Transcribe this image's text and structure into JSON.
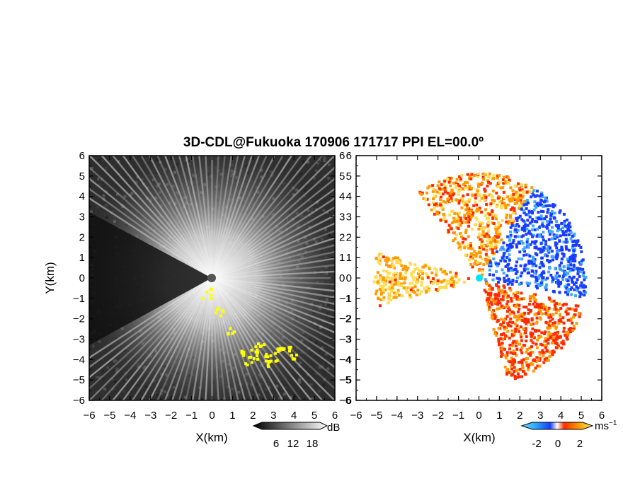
{
  "title": "3D-CDL@Fukuoka 170906 171717 PPI EL=00.0º",
  "colors": {
    "reflectivity_low": "#000000",
    "reflectivity_high": "#ffffff",
    "highlight": "#ffff00",
    "velocity_negative_dark": "#1a3cff",
    "velocity_negative_light": "#3fa8ff",
    "velocity_near_zero": "#ffffff",
    "velocity_positive_mid": "#ff9a00",
    "velocity_positive_high": "#ff2a00",
    "velocity_positive_light": "#ffdd55",
    "radar_marker_left": "#555555",
    "radar_marker_right": "#00e5ff"
  },
  "chart_data": [
    {
      "type": "heatmap",
      "panel": "left",
      "quantity": "signal intensity (grayscale PPI)",
      "xlabel": "X(km)",
      "ylabel": "Y(km)",
      "xlim": [
        -6,
        6
      ],
      "ylim": [
        -6,
        6
      ],
      "x_ticks": [
        -6,
        -5,
        -4,
        -3,
        -2,
        -1,
        0,
        1,
        2,
        3,
        4,
        5,
        6
      ],
      "y_ticks": [
        -6,
        -5,
        -4,
        -3,
        -2,
        -1,
        0,
        1,
        2,
        3,
        4,
        5,
        6
      ],
      "colorbar": {
        "unit": "dB",
        "ticks": [
          6,
          12,
          18
        ]
      },
      "radar_position": [
        0,
        0
      ],
      "blocked_sectors_deg": [
        [
          150,
          210
        ]
      ],
      "yellow_contour_points": [
        [
          -0.3,
          -0.7
        ],
        [
          0.3,
          -1.6
        ],
        [
          0.8,
          -2.6
        ],
        [
          1.3,
          -3.5
        ],
        [
          1.7,
          -4.0
        ],
        [
          2.0,
          -3.7
        ],
        [
          2.3,
          -3.4
        ],
        [
          2.6,
          -3.9
        ],
        [
          2.9,
          -4.1
        ],
        [
          3.2,
          -3.6
        ],
        [
          3.6,
          -3.5
        ],
        [
          3.9,
          -3.7
        ]
      ]
    },
    {
      "type": "heatmap",
      "panel": "right",
      "quantity": "Doppler velocity",
      "xlabel": "X(km)",
      "xlim": [
        -6,
        6
      ],
      "ylim": [
        -6,
        6
      ],
      "x_ticks": [
        -6,
        -5,
        -4,
        -3,
        -2,
        -1,
        0,
        1,
        2,
        3,
        4,
        5,
        6
      ],
      "y_ticks": [
        -6,
        -5,
        -4,
        -3,
        -2,
        -1,
        0,
        1,
        2,
        3,
        4,
        5,
        6
      ],
      "colorbar": {
        "unit": "ms",
        "unit_exponent": "−1",
        "ticks": [
          -2,
          0,
          2
        ],
        "range": [
          -3,
          3
        ]
      },
      "radar_position": [
        0,
        0
      ],
      "regions": [
        {
          "label": "negative core",
          "sector_deg": [
            -10,
            60
          ],
          "velocity": -1.5
        },
        {
          "label": "positive arc north",
          "sector_deg": [
            60,
            125
          ],
          "velocity": 1.5
        },
        {
          "label": "positive sector west",
          "sector_deg": [
            165,
            195
          ],
          "velocity": 1.2
        },
        {
          "label": "positive south-east",
          "sector_deg": [
            -75,
            -15
          ],
          "velocity": 2.0
        }
      ]
    }
  ]
}
